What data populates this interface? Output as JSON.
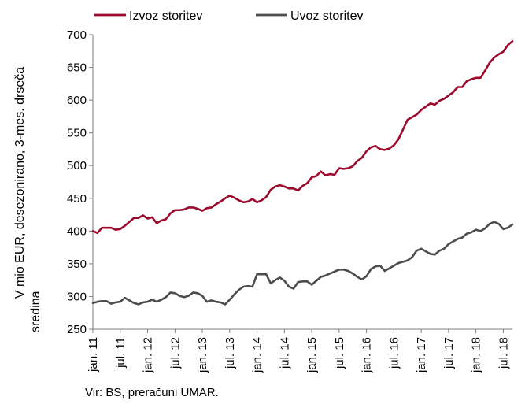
{
  "chart_data": {
    "type": "line",
    "title": "",
    "xlabel": "",
    "ylabel_lines": [
      "V mio EUR, desezonirano, 3-mes. drseča",
      "sredina"
    ],
    "ylim": [
      250,
      700
    ],
    "yticks": [
      250,
      300,
      350,
      400,
      450,
      500,
      550,
      600,
      650,
      700
    ],
    "x_tick_labels": [
      "jan. 11",
      "jul. 11",
      "jan. 12",
      "jul. 12",
      "jan. 13",
      "jul. 13",
      "jan. 14",
      "jul. 14",
      "jan. 15",
      "jul. 15",
      "jan. 16",
      "jul. 16",
      "jan. 17",
      "jul. 17",
      "jan. 18",
      "jul. 18"
    ],
    "x_start": "2011-01",
    "x_end": "2018-10",
    "grid": false,
    "legend_position": "top",
    "series": [
      {
        "name": "Izvoz storitev",
        "color": "#9b0a2c",
        "values": [
          400,
          397,
          405,
          405,
          405,
          402,
          403,
          408,
          414,
          420,
          420,
          424,
          419,
          421,
          412,
          416,
          418,
          427,
          432,
          432,
          433,
          436,
          436,
          434,
          431,
          435,
          436,
          441,
          445,
          450,
          454,
          451,
          447,
          444,
          445,
          449,
          444,
          447,
          452,
          463,
          468,
          470,
          468,
          465,
          465,
          462,
          469,
          473,
          482,
          484,
          491,
          485,
          487,
          486,
          496,
          495,
          496,
          499,
          507,
          512,
          522,
          528,
          530,
          525,
          524,
          526,
          531,
          540,
          555,
          570,
          574,
          578,
          585,
          590,
          595,
          593,
          599,
          602,
          607,
          612,
          620,
          620,
          629,
          632,
          634,
          634,
          645,
          657,
          665,
          670,
          674,
          684,
          690
        ]
      },
      {
        "name": "Uvoz storitev",
        "color": "#4d4d4d",
        "values": [
          290,
          292,
          293,
          293,
          289,
          291,
          292,
          298,
          294,
          290,
          288,
          291,
          292,
          295,
          292,
          295,
          299,
          306,
          305,
          301,
          299,
          301,
          306,
          305,
          301,
          292,
          294,
          292,
          291,
          288,
          295,
          303,
          310,
          315,
          316,
          315,
          334,
          334,
          334,
          320,
          325,
          329,
          324,
          315,
          312,
          322,
          323,
          323,
          318,
          324,
          330,
          332,
          335,
          338,
          341,
          341,
          339,
          335,
          330,
          326,
          331,
          342,
          346,
          347,
          339,
          343,
          347,
          351,
          353,
          355,
          360,
          370,
          373,
          369,
          365,
          364,
          370,
          373,
          380,
          384,
          388,
          390,
          396,
          398,
          402,
          400,
          404,
          411,
          414,
          411,
          403,
          405,
          410
        ]
      }
    ]
  },
  "source": "Vir: BS, preračuni UMAR."
}
